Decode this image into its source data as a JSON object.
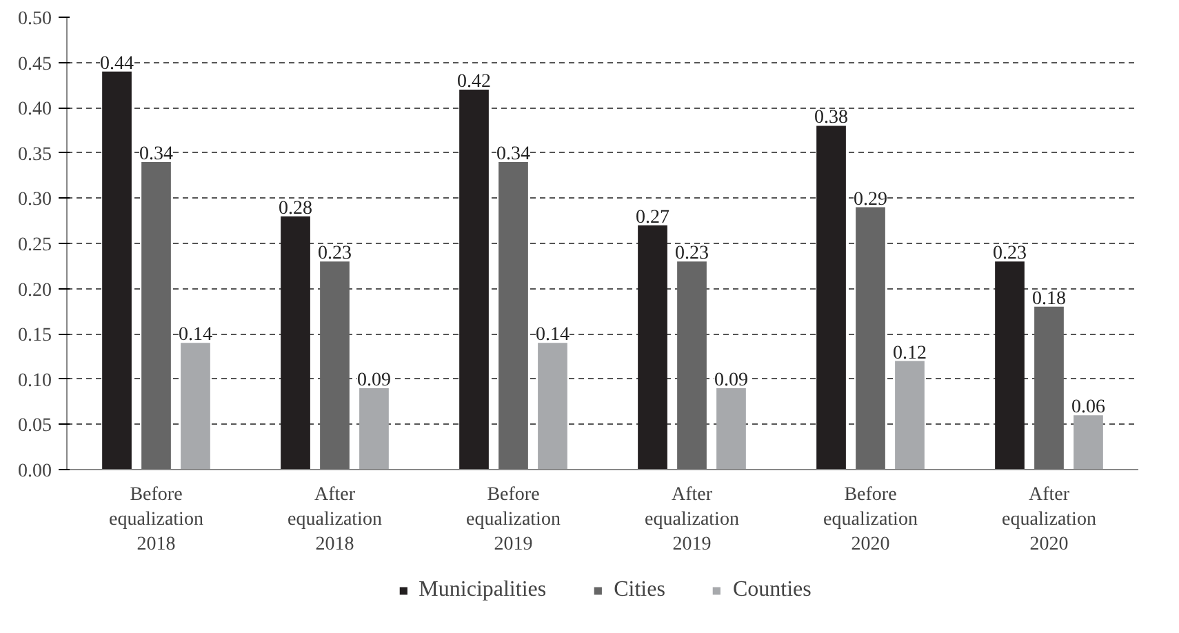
{
  "chart_data": {
    "type": "bar",
    "categories": [
      "Before\nequalization\n2018",
      "After\nequalization\n2018",
      "Before\nequalization\n2019",
      "After\nequalization\n2019",
      "Before\nequalization\n2020",
      "After\nequalization\n2020"
    ],
    "series": [
      {
        "name": "Municipalities",
        "color": "#231f20",
        "values": [
          0.44,
          0.28,
          0.42,
          0.27,
          0.38,
          0.23
        ]
      },
      {
        "name": "Cities",
        "color": "#666666",
        "values": [
          0.34,
          0.23,
          0.34,
          0.23,
          0.29,
          0.18
        ]
      },
      {
        "name": "Counties",
        "color": "#a7a9ac",
        "values": [
          0.14,
          0.09,
          0.14,
          0.09,
          0.12,
          0.06
        ]
      }
    ],
    "ylim": [
      0,
      0.5
    ],
    "yticks": [
      {
        "value": 0,
        "label": "0.00"
      },
      {
        "value": 0.05,
        "label": "0.05"
      },
      {
        "value": 0.1,
        "label": "0.10"
      },
      {
        "value": 0.15,
        "label": "0.15"
      },
      {
        "value": 0.2,
        "label": "0.20"
      },
      {
        "value": 0.25,
        "label": "0.25"
      },
      {
        "value": 0.3,
        "label": "0.30"
      },
      {
        "value": 0.35,
        "label": "0.35"
      },
      {
        "value": 0.4,
        "label": "0.40"
      },
      {
        "value": 0.45,
        "label": "0.45"
      },
      {
        "value": 0.5,
        "label": "0.50"
      }
    ],
    "grid": "y",
    "legend": "bottom",
    "data_labels": true
  }
}
